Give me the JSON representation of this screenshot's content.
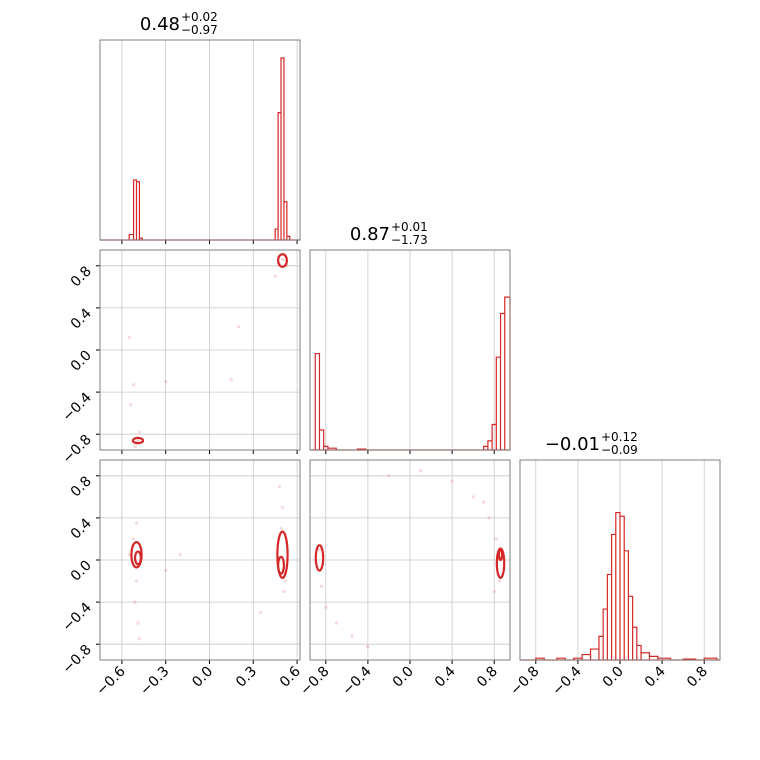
{
  "chart_data": {
    "type": "corner",
    "color": "#d62728",
    "parameters": [
      {
        "title_median": "0.48",
        "title_plus": "+0.02",
        "title_minus": "−0.97",
        "range": [
          -0.75,
          0.62
        ]
      },
      {
        "title_median": "0.87",
        "title_plus": "+0.01",
        "title_minus": "−1.73",
        "range": [
          -0.95,
          0.95
        ]
      },
      {
        "title_median": "−0.01",
        "title_plus": "+0.12",
        "title_minus": "−0.09",
        "range": [
          -0.95,
          0.95
        ]
      }
    ],
    "tick_values": [
      [
        -0.6,
        -0.3,
        0.0,
        0.3,
        0.6
      ],
      [
        -0.8,
        -0.4,
        0.0,
        0.4,
        0.8
      ],
      [
        -0.8,
        -0.4,
        0.0,
        0.4,
        0.8
      ]
    ],
    "tick_labels": [
      [
        "−0.6",
        "−0.3",
        "0.0",
        "0.3",
        "0.6"
      ],
      [
        "−0.8",
        "−0.4",
        "0.0",
        "0.4",
        "0.8"
      ],
      [
        "−0.8",
        "−0.4",
        "0.0",
        "0.4",
        "0.8"
      ]
    ],
    "histograms": [
      {
        "bins": [
          [
            -0.55,
            -0.52,
            0.03
          ],
          [
            -0.52,
            -0.5,
            0.33
          ],
          [
            -0.5,
            -0.48,
            0.32
          ],
          [
            -0.48,
            -0.46,
            0.01
          ],
          [
            0.45,
            0.47,
            0.06
          ],
          [
            0.47,
            0.49,
            0.7
          ],
          [
            0.49,
            0.51,
            1.0
          ],
          [
            0.51,
            0.53,
            0.21
          ],
          [
            0.53,
            0.55,
            0.02
          ]
        ]
      },
      {
        "bins": [
          [
            -0.9,
            -0.86,
            0.53
          ],
          [
            -0.86,
            -0.82,
            0.11
          ],
          [
            -0.82,
            -0.78,
            0.02
          ],
          [
            -0.78,
            -0.7,
            0.01
          ],
          [
            -0.5,
            -0.42,
            0.005
          ],
          [
            0.7,
            0.74,
            0.02
          ],
          [
            0.74,
            0.78,
            0.05
          ],
          [
            0.78,
            0.82,
            0.14
          ],
          [
            0.82,
            0.86,
            0.51
          ],
          [
            0.86,
            0.9,
            0.75
          ],
          [
            0.9,
            0.95,
            0.84
          ]
        ]
      },
      {
        "bins": [
          [
            -0.8,
            -0.72,
            0.01
          ],
          [
            -0.6,
            -0.52,
            0.01
          ],
          [
            -0.44,
            -0.36,
            0.01
          ],
          [
            -0.36,
            -0.28,
            0.03
          ],
          [
            -0.28,
            -0.2,
            0.06
          ],
          [
            -0.2,
            -0.16,
            0.13
          ],
          [
            -0.16,
            -0.12,
            0.28
          ],
          [
            -0.12,
            -0.08,
            0.47
          ],
          [
            -0.08,
            -0.04,
            0.69
          ],
          [
            -0.04,
            0.0,
            0.81
          ],
          [
            0.0,
            0.04,
            0.79
          ],
          [
            0.04,
            0.08,
            0.6
          ],
          [
            0.08,
            0.12,
            0.35
          ],
          [
            0.12,
            0.16,
            0.18
          ],
          [
            0.16,
            0.2,
            0.08
          ],
          [
            0.2,
            0.28,
            0.04
          ],
          [
            0.28,
            0.36,
            0.02
          ],
          [
            0.36,
            0.48,
            0.01
          ],
          [
            0.6,
            0.72,
            0.005
          ],
          [
            0.8,
            0.92,
            0.01
          ]
        ]
      }
    ],
    "scatter": {
      "1-0": [
        [
          -0.5,
          -0.89
        ],
        [
          -0.49,
          -0.86
        ],
        [
          -0.51,
          -0.92
        ],
        [
          -0.52,
          -0.33
        ],
        [
          -0.54,
          -0.52
        ],
        [
          -0.55,
          0.12
        ],
        [
          -0.3,
          -0.3
        ],
        [
          0.2,
          0.22
        ],
        [
          0.15,
          -0.28
        ],
        [
          0.45,
          0.7
        ],
        [
          0.48,
          0.82
        ],
        [
          0.52,
          0.9
        ],
        [
          0.5,
          0.86
        ],
        [
          0.53,
          0.8
        ],
        [
          -0.48,
          -0.78
        ]
      ],
      "2-0": [
        [
          -0.5,
          0.35
        ],
        [
          -0.51,
          -0.4
        ],
        [
          -0.49,
          -0.6
        ],
        [
          -0.48,
          -0.75
        ],
        [
          -0.52,
          0.2
        ],
        [
          -0.5,
          -0.2
        ],
        [
          -0.3,
          -0.1
        ],
        [
          -0.2,
          0.05
        ],
        [
          0.5,
          0.5
        ],
        [
          0.51,
          -0.3
        ],
        [
          0.49,
          0.3
        ],
        [
          0.52,
          -0.2
        ],
        [
          0.48,
          0.7
        ],
        [
          0.35,
          -0.5
        ],
        [
          -0.55,
          0.05
        ]
      ],
      "2-1": [
        [
          -0.86,
          0.1
        ],
        [
          -0.84,
          -0.25
        ],
        [
          -0.8,
          -0.45
        ],
        [
          -0.7,
          -0.6
        ],
        [
          -0.55,
          -0.72
        ],
        [
          -0.4,
          -0.82
        ],
        [
          -0.2,
          0.8
        ],
        [
          0.1,
          0.85
        ],
        [
          0.4,
          0.75
        ],
        [
          0.6,
          0.6
        ],
        [
          0.75,
          0.4
        ],
        [
          0.82,
          0.2
        ],
        [
          0.85,
          -0.2
        ],
        [
          0.8,
          -0.3
        ],
        [
          0.7,
          0.55
        ]
      ]
    },
    "contours": {
      "1-0": [
        {
          "cx": -0.49,
          "cy": -0.86,
          "rx": 0.035,
          "ry": 0.025
        },
        {
          "cx": 0.5,
          "cy": 0.85,
          "rx": 0.03,
          "ry": 0.06
        }
      ],
      "2-0": [
        {
          "cx": -0.5,
          "cy": 0.05,
          "rx": 0.035,
          "ry": 0.12
        },
        {
          "cx": -0.49,
          "cy": 0.02,
          "rx": 0.02,
          "ry": 0.06
        },
        {
          "cx": 0.5,
          "cy": 0.05,
          "rx": 0.035,
          "ry": 0.22
        },
        {
          "cx": 0.49,
          "cy": -0.05,
          "rx": 0.02,
          "ry": 0.08
        }
      ],
      "2-1": [
        {
          "cx": -0.86,
          "cy": 0.02,
          "rx": 0.035,
          "ry": 0.12
        },
        {
          "cx": 0.86,
          "cy": -0.03,
          "rx": 0.035,
          "ry": 0.14
        },
        {
          "cx": 0.86,
          "cy": 0.05,
          "rx": 0.015,
          "ry": 0.05
        }
      ]
    }
  }
}
